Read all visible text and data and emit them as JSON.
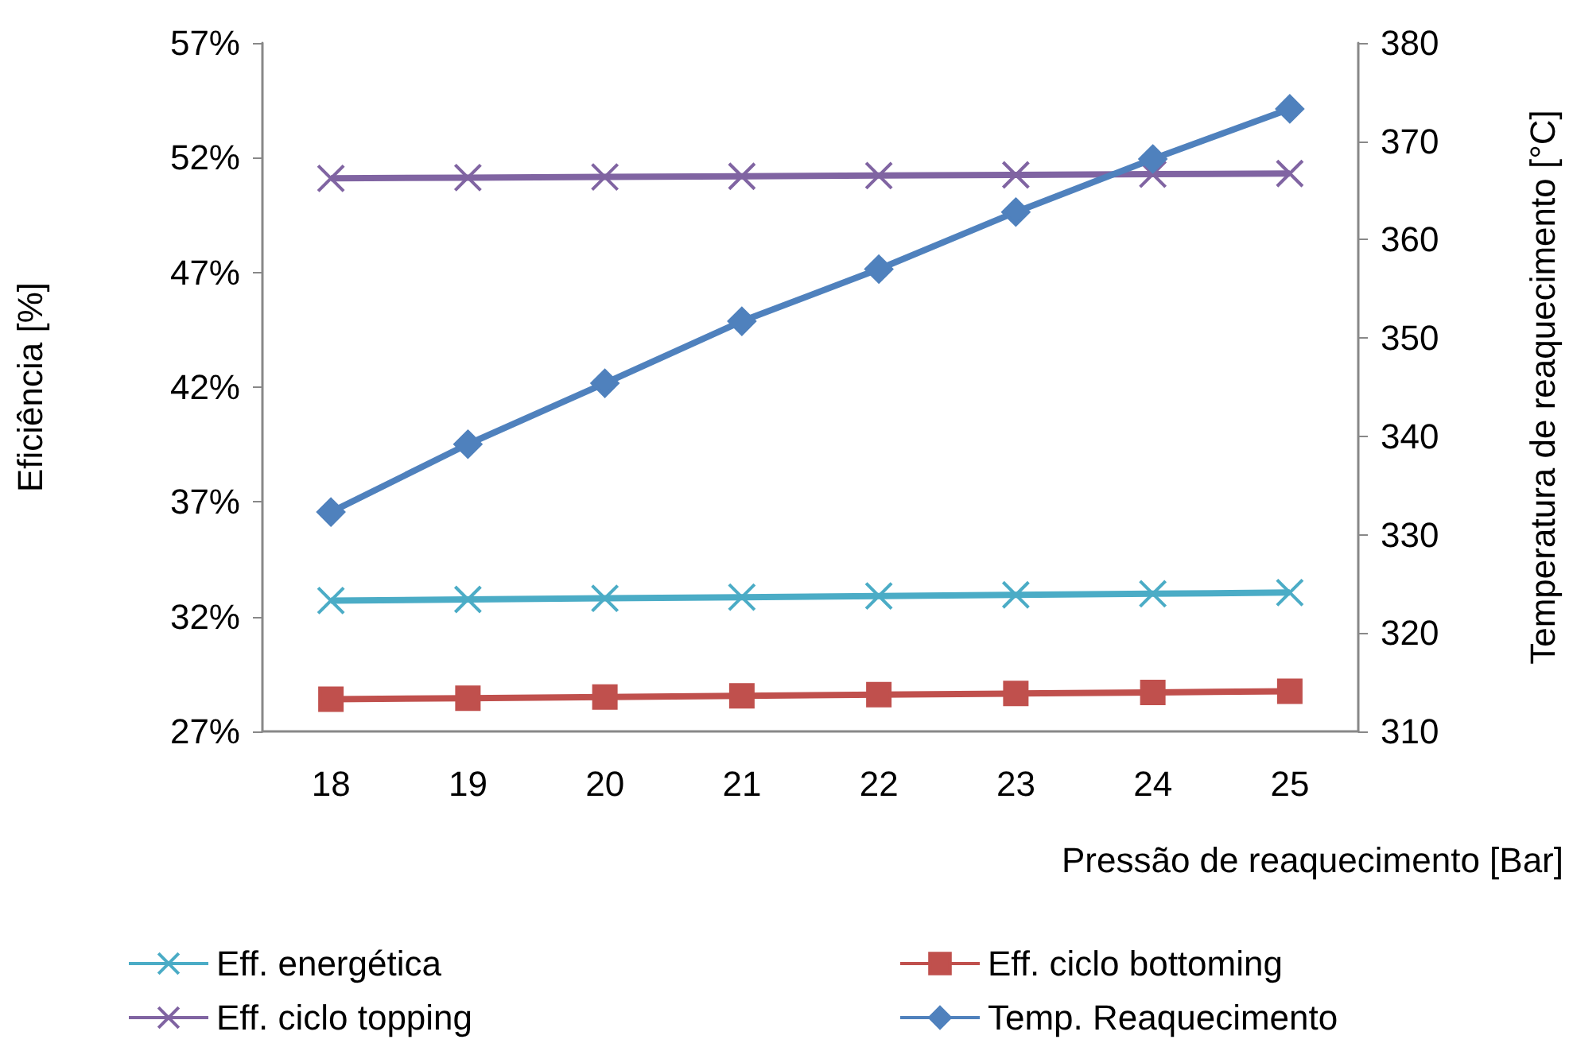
{
  "chart_data": {
    "type": "line",
    "xlabel": "Pressão de reaquecimento [Bar]",
    "ylabel": "Eficiência [%]",
    "y2label": "Temperatura de reaquecimento [°C]",
    "categories": [
      "18",
      "19",
      "20",
      "21",
      "22",
      "23",
      "24",
      "25"
    ],
    "series": [
      {
        "name": "Eff. energética",
        "color": "#4bacc6",
        "marker": "cross",
        "values": [
          32.7,
          32.75,
          32.8,
          32.85,
          32.9,
          32.95,
          33.0,
          33.05
        ]
      },
      {
        "name": "Eff. ciclo bottoming",
        "color": "#c0504d",
        "marker": "square",
        "values": [
          28.4,
          28.45,
          28.5,
          28.55,
          28.6,
          28.65,
          28.7,
          28.75
        ]
      },
      {
        "name": "Eff. ciclo topping",
        "color": "#8064a2",
        "marker": "cross",
        "values": [
          51.1,
          51.13,
          51.16,
          51.19,
          51.22,
          51.25,
          51.28,
          51.31
        ]
      },
      {
        "name": "Temp. Reaquecimento",
        "color": "#4f81bd",
        "marker": "diamond",
        "axis": "y2",
        "values": [
          332.3,
          339.2,
          345.4,
          351.7,
          357.0,
          362.8,
          368.2,
          373.3
        ]
      }
    ],
    "ylim": [
      27,
      57
    ],
    "yticks": [
      {
        "value": 27,
        "label": "27%"
      },
      {
        "value": 32,
        "label": "32%"
      },
      {
        "value": 37,
        "label": "37%"
      },
      {
        "value": 42,
        "label": "42%"
      },
      {
        "value": 47,
        "label": "47%"
      },
      {
        "value": 52,
        "label": "52%"
      },
      {
        "value": 57,
        "label": "57%"
      }
    ],
    "y2lim": [
      310,
      380
    ],
    "y2ticks": [
      310,
      320,
      330,
      340,
      350,
      360,
      370,
      380
    ],
    "grid": false,
    "legend": "bottom"
  }
}
